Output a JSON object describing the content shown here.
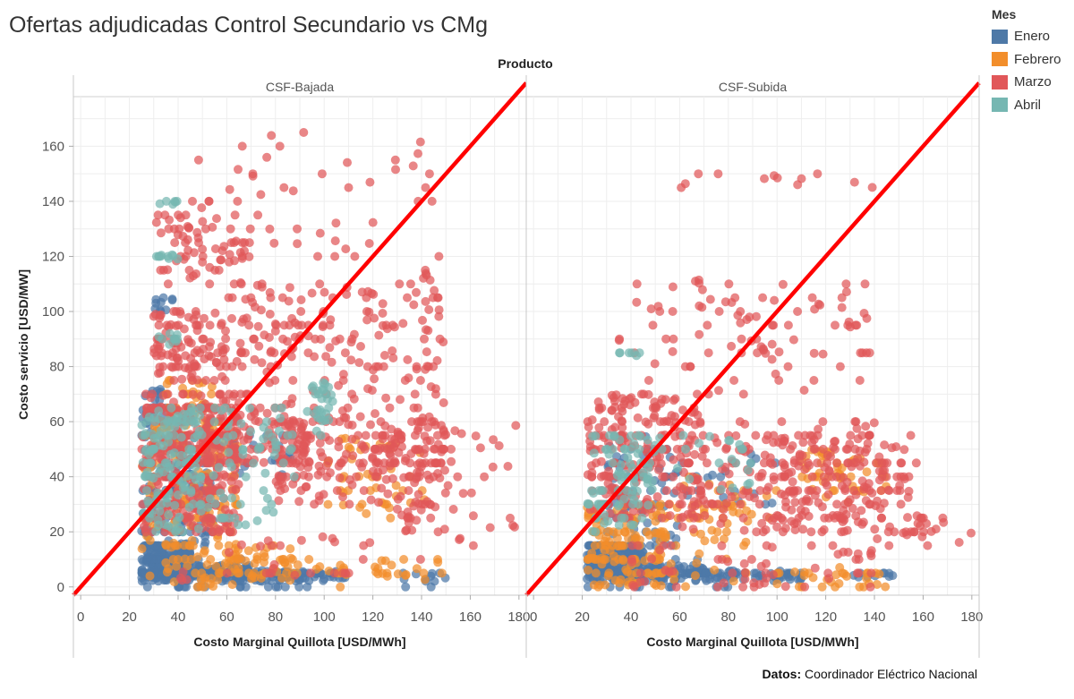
{
  "title": "Ofertas adjudicadas Control Secundario vs CMg",
  "source": {
    "label": "Datos:",
    "text": "Coordinador Eléctrico Nacional"
  },
  "legend": {
    "title": "Mes",
    "items": [
      {
        "label": "Enero",
        "color": "#4e79a7"
      },
      {
        "label": "Febrero",
        "color": "#f28e2b"
      },
      {
        "label": "Marzo",
        "color": "#e15759"
      },
      {
        "label": "Abril",
        "color": "#76b7b2"
      }
    ]
  },
  "chart_data": {
    "type": "scatter",
    "header": "Producto",
    "panels": [
      "CSF-Bajada",
      "CSF-Subida"
    ],
    "xlabel": "Costo Marginal Quillota [USD/MWh]",
    "ylabel": "Costo servicio [USD/MW]",
    "xlim": [
      -3,
      183
    ],
    "ylim": [
      -3,
      178
    ],
    "xticks": [
      0,
      20,
      40,
      60,
      80,
      100,
      120,
      140,
      160,
      180
    ],
    "yticks": [
      0,
      20,
      40,
      60,
      80,
      100,
      120,
      140,
      160
    ],
    "grid": true,
    "reference_line": {
      "color": "#ff0000",
      "x": [
        -3,
        183
      ],
      "y": [
        -3,
        183
      ]
    },
    "series": [
      {
        "name": "Enero",
        "color": "#4e79a7",
        "points": [
          {
            "panel": "CSF-Bajada",
            "x": [
              [
                25,
                45
              ],
              [
                40,
                70
              ],
              [
                60,
                90
              ],
              [
                80,
                110
              ],
              [
                130,
                150
              ]
            ],
            "y": [
              [
                2,
                15
              ],
              [
                2,
                8
              ],
              [
                2,
                6
              ],
              [
                2,
                6
              ],
              [
                2,
                5
              ]
            ],
            "n": [
              260,
              140,
              80,
              40,
              12
            ]
          },
          {
            "panel": "CSF-Bajada",
            "x": [
              [
                25,
                55
              ],
              [
                60,
                90
              ]
            ],
            "y": [
              [
                15,
                55
              ],
              [
                40,
                55
              ]
            ],
            "n": [
              140,
              20
            ]
          },
          {
            "panel": "CSF-Bajada",
            "x": [
              [
                25,
                35
              ],
              [
                30,
                38
              ]
            ],
            "y": [
              [
                55,
                72
              ],
              [
                100,
                105
              ]
            ],
            "n": [
              30,
              10
            ]
          },
          {
            "panel": "CSF-Subida",
            "x": [
              [
                22,
                45
              ],
              [
                40,
                70
              ],
              [
                70,
                110
              ],
              [
                130,
                150
              ]
            ],
            "y": [
              [
                2,
                15
              ],
              [
                2,
                8
              ],
              [
                2,
                6
              ],
              [
                2,
                5
              ]
            ],
            "n": [
              220,
              120,
              60,
              10
            ]
          },
          {
            "panel": "CSF-Subida",
            "x": [
              [
                30,
                60
              ],
              [
                60,
                100
              ]
            ],
            "y": [
              [
                15,
                55
              ],
              [
                30,
                50
              ]
            ],
            "n": [
              70,
              20
            ]
          }
        ]
      },
      {
        "name": "Febrero",
        "color": "#f28e2b",
        "points": [
          {
            "panel": "CSF-Bajada",
            "x": [
              [
                25,
                65
              ],
              [
                60,
                90
              ]
            ],
            "y": [
              [
                0,
                60
              ],
              [
                2,
                15
              ]
            ],
            "n": [
              220,
              40
            ]
          },
          {
            "panel": "CSF-Bajada",
            "x": [
              [
                35,
                55
              ],
              [
                100,
                145
              ]
            ],
            "y": [
              [
                60,
                75
              ],
              [
                25,
                55
              ]
            ],
            "n": [
              40,
              45
            ]
          },
          {
            "panel": "CSF-Bajada",
            "x": [
              [
                120,
                150
              ],
              [
                85,
                110
              ]
            ],
            "y": [
              [
                2,
                10
              ],
              [
                2,
                10
              ]
            ],
            "n": [
              20,
              15
            ]
          },
          {
            "panel": "CSF-Subida",
            "x": [
              [
                22,
                55
              ],
              [
                50,
                90
              ]
            ],
            "y": [
              [
                0,
                30
              ],
              [
                0,
                35
              ]
            ],
            "n": [
              140,
              40
            ]
          },
          {
            "panel": "CSF-Subida",
            "x": [
              [
                110,
                145
              ],
              [
                60,
                100
              ]
            ],
            "y": [
              [
                30,
                50
              ],
              [
                20,
                40
              ]
            ],
            "n": [
              50,
              25
            ]
          },
          {
            "panel": "CSF-Subida",
            "x": [
              [
                100,
                150
              ]
            ],
            "y": [
              [
                0,
                8
              ]
            ],
            "n": [
              30
            ]
          }
        ]
      },
      {
        "name": "Marzo",
        "color": "#e15759",
        "points": [
          {
            "panel": "CSF-Bajada",
            "x": [
              [
                25,
                65
              ],
              [
                40,
                95
              ],
              [
                80,
                150
              ],
              [
                120,
                150
              ]
            ],
            "y": [
              [
                20,
                70
              ],
              [
                45,
                65
              ],
              [
                30,
                60
              ],
              [
                40,
                60
              ]
            ],
            "n": [
              320,
              140,
              160,
              60
            ]
          },
          {
            "panel": "CSF-Bajada",
            "x": [
              [
                30,
                60
              ],
              [
                60,
                150
              ],
              [
                30,
                70
              ],
              [
                60,
                130
              ]
            ],
            "y": [
              [
                75,
                100
              ],
              [
                60,
                110
              ],
              [
                110,
                135
              ],
              [
                80,
                100
              ]
            ],
            "n": [
              110,
              160,
              60,
              40
            ]
          },
          {
            "panel": "CSF-Bajada",
            "x": [
              [
                40,
                145
              ],
              [
                150,
                180
              ],
              [
                130,
                150
              ],
              [
                140,
                150
              ]
            ],
            "y": [
              [
                120,
                170
              ],
              [
                15,
                60
              ],
              [
                20,
                30
              ],
              [
                100,
                140
              ]
            ],
            "n": [
              55,
              25,
              20,
              10
            ]
          },
          {
            "panel": "CSF-Bajada",
            "x": [
              [
                40,
                140
              ]
            ],
            "y": [
              [
                2,
                20
              ]
            ],
            "n": [
              30
            ]
          },
          {
            "panel": "CSF-Subida",
            "x": [
              [
                22,
                70
              ],
              [
                60,
                140
              ],
              [
                100,
                160
              ],
              [
                140,
                180
              ]
            ],
            "y": [
              [
                25,
                70
              ],
              [
                20,
                60
              ],
              [
                20,
                55
              ],
              [
                15,
                25
              ]
            ],
            "n": [
              220,
              200,
              120,
              20
            ]
          },
          {
            "panel": "CSF-Subida",
            "x": [
              [
                35,
                140
              ],
              [
                40,
                140
              ],
              [
                50,
                140
              ]
            ],
            "y": [
              [
                70,
                100
              ],
              [
                95,
                112
              ],
              [
                145,
                150
              ]
            ],
            "n": [
              60,
              35,
              12
            ]
          },
          {
            "panel": "CSF-Subida",
            "x": [
              [
                40,
                140
              ]
            ],
            "y": [
              [
                0,
                15
              ]
            ],
            "n": [
              60
            ]
          }
        ]
      },
      {
        "name": "Abril",
        "color": "#76b7b2",
        "points": [
          {
            "panel": "CSF-Bajada",
            "x": [
              [
                25,
                50
              ],
              [
                30,
                100
              ],
              [
                95,
                105
              ],
              [
                50,
                80
              ]
            ],
            "y": [
              [
                20,
                65
              ],
              [
                40,
                65
              ],
              [
                60,
                75
              ],
              [
                20,
                35
              ]
            ],
            "n": [
              130,
              70,
              25,
              20
            ]
          },
          {
            "panel": "CSF-Bajada",
            "x": [
              [
                30,
                40
              ],
              [
                30,
                40
              ],
              [
                30,
                40
              ]
            ],
            "y": [
              [
                88,
                92
              ],
              [
                118,
                122
              ],
              [
                138,
                140
              ]
            ],
            "n": [
              10,
              10,
              6
            ]
          },
          {
            "panel": "CSF-Subida",
            "x": [
              [
                22,
                50
              ],
              [
                40,
                90
              ]
            ],
            "y": [
              [
                20,
                55
              ],
              [
                35,
                55
              ]
            ],
            "n": [
              80,
              30
            ]
          },
          {
            "panel": "CSF-Subida",
            "x": [
              [
                35,
                45
              ]
            ],
            "y": [
              [
                82,
                85
              ]
            ],
            "n": [
              6
            ]
          }
        ]
      }
    ]
  }
}
